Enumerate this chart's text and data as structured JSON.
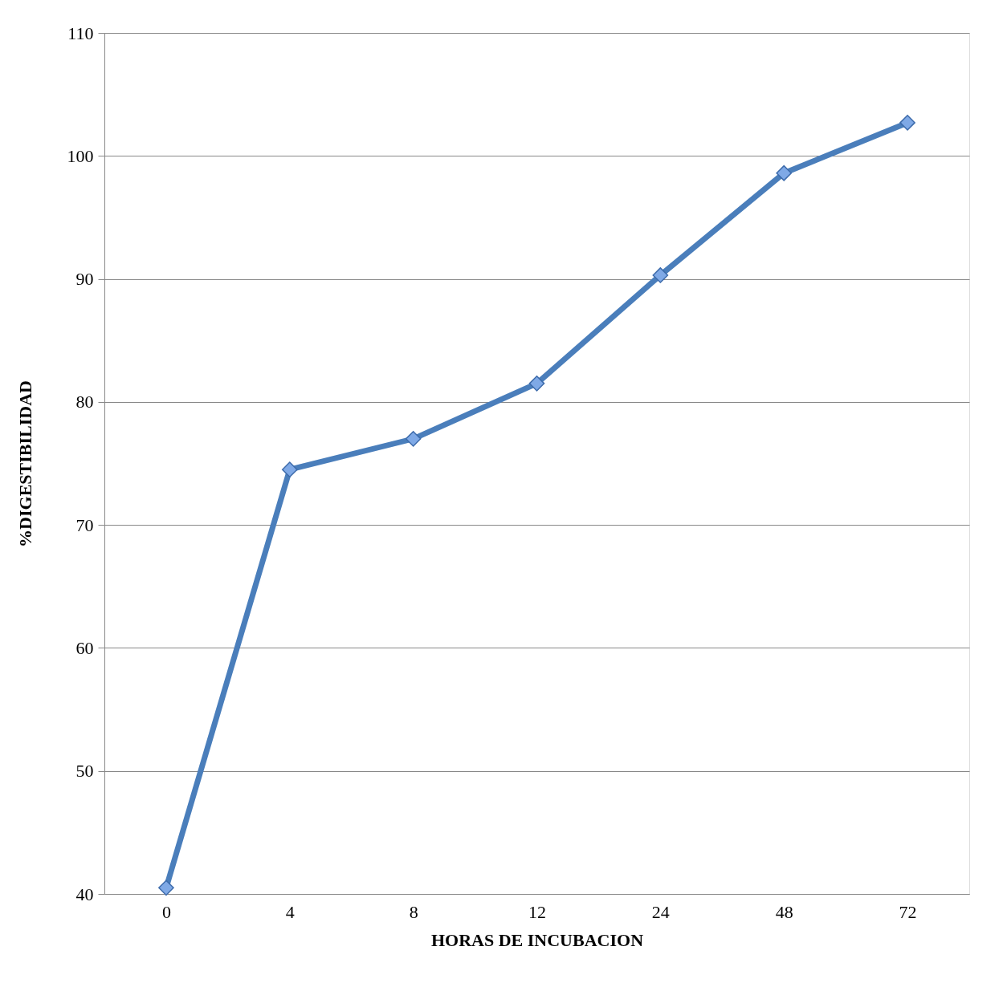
{
  "chart_data": {
    "type": "line",
    "xlabel": "HORAS DE INCUBACION",
    "ylabel": "%DIGESTIBILIDAD",
    "categories": [
      "0",
      "4",
      "8",
      "12",
      "24",
      "48",
      "72"
    ],
    "series": [
      {
        "color": "#4a7ebb",
        "values": [
          40.5,
          74.5,
          77.0,
          81.5,
          90.3,
          98.6,
          102.7
        ]
      }
    ],
    "ylim": [
      40,
      110
    ],
    "yticks": [
      40,
      50,
      60,
      70,
      80,
      90,
      100,
      110
    ],
    "grid": "y",
    "marker": "diamond",
    "line_style": "solid"
  }
}
